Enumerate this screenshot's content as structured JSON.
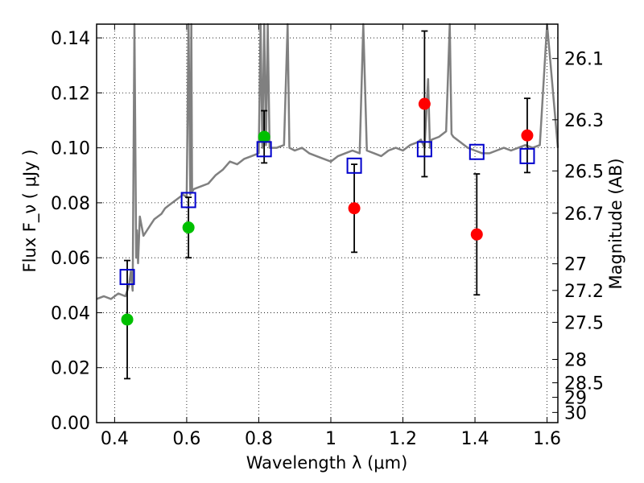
{
  "chart_data": {
    "type": "scatter",
    "xlabel": "Wavelength  λ (μm)",
    "ylabel": "Flux  F_ν  ( μJy )",
    "ylabel_right": "Magnitude (AB)",
    "xlim": [
      0.35,
      1.63
    ],
    "ylim": [
      0.0,
      0.145
    ],
    "grid": true,
    "x_ticks": [
      0.4,
      0.6,
      0.8,
      1.0,
      1.2,
      1.4,
      1.6
    ],
    "x_tick_labels": [
      "0.4",
      "0.6",
      "0.8",
      "1",
      "1.2",
      "1.4",
      "1.6"
    ],
    "y_ticks": [
      0.0,
      0.02,
      0.04,
      0.06,
      0.08,
      0.1,
      0.12,
      0.14
    ],
    "y_tick_labels": [
      "0.00",
      "0.02",
      "0.04",
      "0.06",
      "0.08",
      "0.10",
      "0.12",
      "0.14"
    ],
    "right_ticks": [
      {
        "label": "26.1",
        "flux": 0.1325
      },
      {
        "label": "26.3",
        "flux": 0.1102
      },
      {
        "label": "26.5",
        "flux": 0.0916
      },
      {
        "label": "26.7",
        "flux": 0.0762
      },
      {
        "label": "27",
        "flux": 0.0578
      },
      {
        "label": "27.2",
        "flux": 0.0481
      },
      {
        "label": "27.5",
        "flux": 0.0365
      },
      {
        "label": "28",
        "flux": 0.023
      },
      {
        "label": "28.5",
        "flux": 0.0145
      },
      {
        "label": "29",
        "flux": 0.0092
      },
      {
        "label": "30",
        "flux": 0.0037
      }
    ],
    "series": [
      {
        "name": "Model spectrum",
        "kind": "line",
        "color": "#808080",
        "x": [
          0.35,
          0.37,
          0.39,
          0.41,
          0.43,
          0.44,
          0.445,
          0.45,
          0.455,
          0.46,
          0.462,
          0.465,
          0.47,
          0.48,
          0.49,
          0.5,
          0.51,
          0.52,
          0.53,
          0.54,
          0.55,
          0.56,
          0.57,
          0.58,
          0.59,
          0.6,
          0.605,
          0.61,
          0.613,
          0.615,
          0.62,
          0.64,
          0.66,
          0.68,
          0.7,
          0.72,
          0.74,
          0.76,
          0.78,
          0.8,
          0.805,
          0.81,
          0.815,
          0.82,
          0.825,
          0.83,
          0.85,
          0.87,
          0.88,
          0.885,
          0.9,
          0.92,
          0.94,
          0.96,
          0.98,
          1.0,
          1.02,
          1.04,
          1.06,
          1.08,
          1.09,
          1.1,
          1.12,
          1.14,
          1.16,
          1.18,
          1.2,
          1.22,
          1.24,
          1.25,
          1.26,
          1.27,
          1.275,
          1.28,
          1.3,
          1.32,
          1.33,
          1.335,
          1.34,
          1.36,
          1.38,
          1.4,
          1.42,
          1.44,
          1.46,
          1.48,
          1.5,
          1.52,
          1.54,
          1.56,
          1.58,
          1.6,
          1.63
        ],
        "y": [
          0.045,
          0.046,
          0.045,
          0.047,
          0.046,
          0.05,
          0.055,
          0.048,
          0.145,
          0.06,
          0.07,
          0.058,
          0.075,
          0.068,
          0.07,
          0.072,
          0.074,
          0.075,
          0.076,
          0.078,
          0.079,
          0.08,
          0.081,
          0.082,
          0.083,
          0.082,
          0.145,
          0.083,
          0.145,
          0.084,
          0.085,
          0.086,
          0.087,
          0.09,
          0.092,
          0.095,
          0.094,
          0.096,
          0.097,
          0.098,
          0.145,
          0.1,
          0.145,
          0.101,
          0.145,
          0.1,
          0.1,
          0.101,
          0.145,
          0.1,
          0.099,
          0.1,
          0.098,
          0.097,
          0.096,
          0.095,
          0.097,
          0.098,
          0.099,
          0.098,
          0.145,
          0.099,
          0.098,
          0.097,
          0.099,
          0.1,
          0.099,
          0.101,
          0.102,
          0.103,
          0.1,
          0.125,
          0.1,
          0.103,
          0.104,
          0.106,
          0.145,
          0.105,
          0.104,
          0.102,
          0.1,
          0.099,
          0.098,
          0.098,
          0.099,
          0.1,
          0.099,
          0.1,
          0.101,
          0.1,
          0.101,
          0.145,
          0.1
        ]
      },
      {
        "name": "Green photometry",
        "kind": "errorbar-points",
        "color": "#00c000",
        "points": [
          {
            "x": 0.435,
            "y": 0.0375,
            "err_lo": 0.0215,
            "err_hi": 0.0215
          },
          {
            "x": 0.605,
            "y": 0.071,
            "err_lo": 0.011,
            "err_hi": 0.011
          },
          {
            "x": 0.815,
            "y": 0.104,
            "err_lo": 0.0095,
            "err_hi": 0.0095
          }
        ]
      },
      {
        "name": "Red photometry",
        "kind": "errorbar-points",
        "color": "#ff0000",
        "points": [
          {
            "x": 1.065,
            "y": 0.078,
            "err_lo": 0.016,
            "err_hi": 0.016
          },
          {
            "x": 1.26,
            "y": 0.116,
            "err_lo": 0.0265,
            "err_hi": 0.0265
          },
          {
            "x": 1.405,
            "y": 0.0685,
            "err_lo": 0.022,
            "err_hi": 0.022
          },
          {
            "x": 1.545,
            "y": 0.1045,
            "err_lo": 0.0135,
            "err_hi": 0.0135
          }
        ]
      },
      {
        "name": "Model photometry",
        "kind": "open-squares",
        "color": "#0000cc",
        "points": [
          {
            "x": 0.435,
            "y": 0.053
          },
          {
            "x": 0.605,
            "y": 0.081
          },
          {
            "x": 0.815,
            "y": 0.0995
          },
          {
            "x": 1.065,
            "y": 0.0935
          },
          {
            "x": 1.26,
            "y": 0.0995
          },
          {
            "x": 1.405,
            "y": 0.0985
          },
          {
            "x": 1.545,
            "y": 0.097
          }
        ]
      }
    ]
  }
}
